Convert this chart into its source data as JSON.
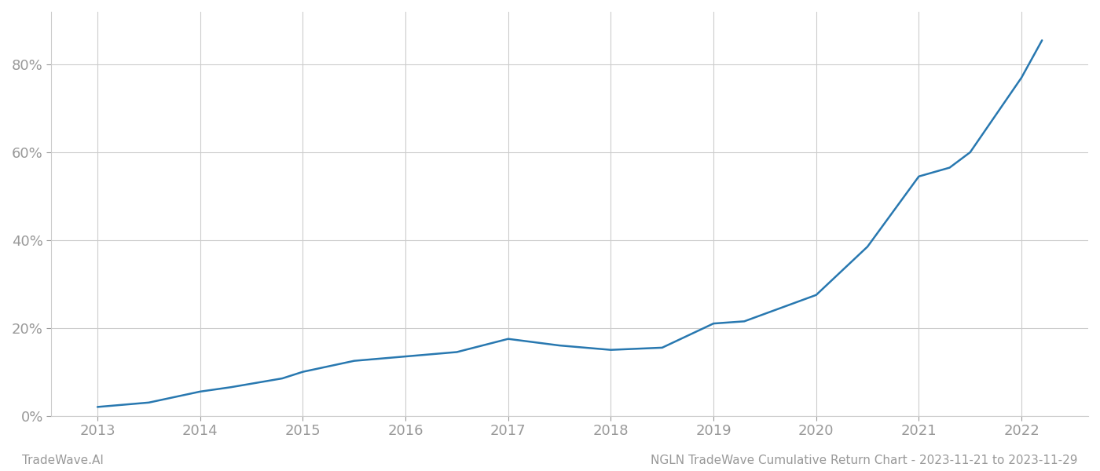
{
  "title": "NGLN TradeWave Cumulative Return Chart - 2023-11-21 to 2023-11-29",
  "watermark": "TradeWave.AI",
  "line_color": "#2878b0",
  "line_width": 1.8,
  "background_color": "#ffffff",
  "grid_color": "#cccccc",
  "x_years": [
    2013,
    2014,
    2015,
    2016,
    2017,
    2018,
    2019,
    2020,
    2021,
    2022
  ],
  "x_data": [
    2013.0,
    2013.5,
    2014.0,
    2014.3,
    2014.8,
    2015.0,
    2015.5,
    2016.0,
    2016.5,
    2017.0,
    2017.5,
    2018.0,
    2018.5,
    2019.0,
    2019.3,
    2020.0,
    2020.5,
    2021.0,
    2021.3,
    2021.5,
    2022.0,
    2022.2
  ],
  "y_data": [
    0.02,
    0.03,
    0.055,
    0.065,
    0.085,
    0.1,
    0.125,
    0.135,
    0.145,
    0.175,
    0.16,
    0.15,
    0.155,
    0.21,
    0.215,
    0.275,
    0.385,
    0.545,
    0.565,
    0.6,
    0.77,
    0.855
  ],
  "yticks": [
    0.0,
    0.2,
    0.4,
    0.6,
    0.8
  ],
  "ytick_labels": [
    "0%",
    "20%",
    "40%",
    "60%",
    "80%"
  ],
  "ylim": [
    0.0,
    0.92
  ],
  "xlim": [
    2012.55,
    2022.65
  ],
  "tick_color": "#999999",
  "tick_fontsize": 13,
  "footer_fontsize": 11,
  "footer_color": "#999999",
  "axis_line_color": "#aaaaaa",
  "spine_color": "#cccccc"
}
